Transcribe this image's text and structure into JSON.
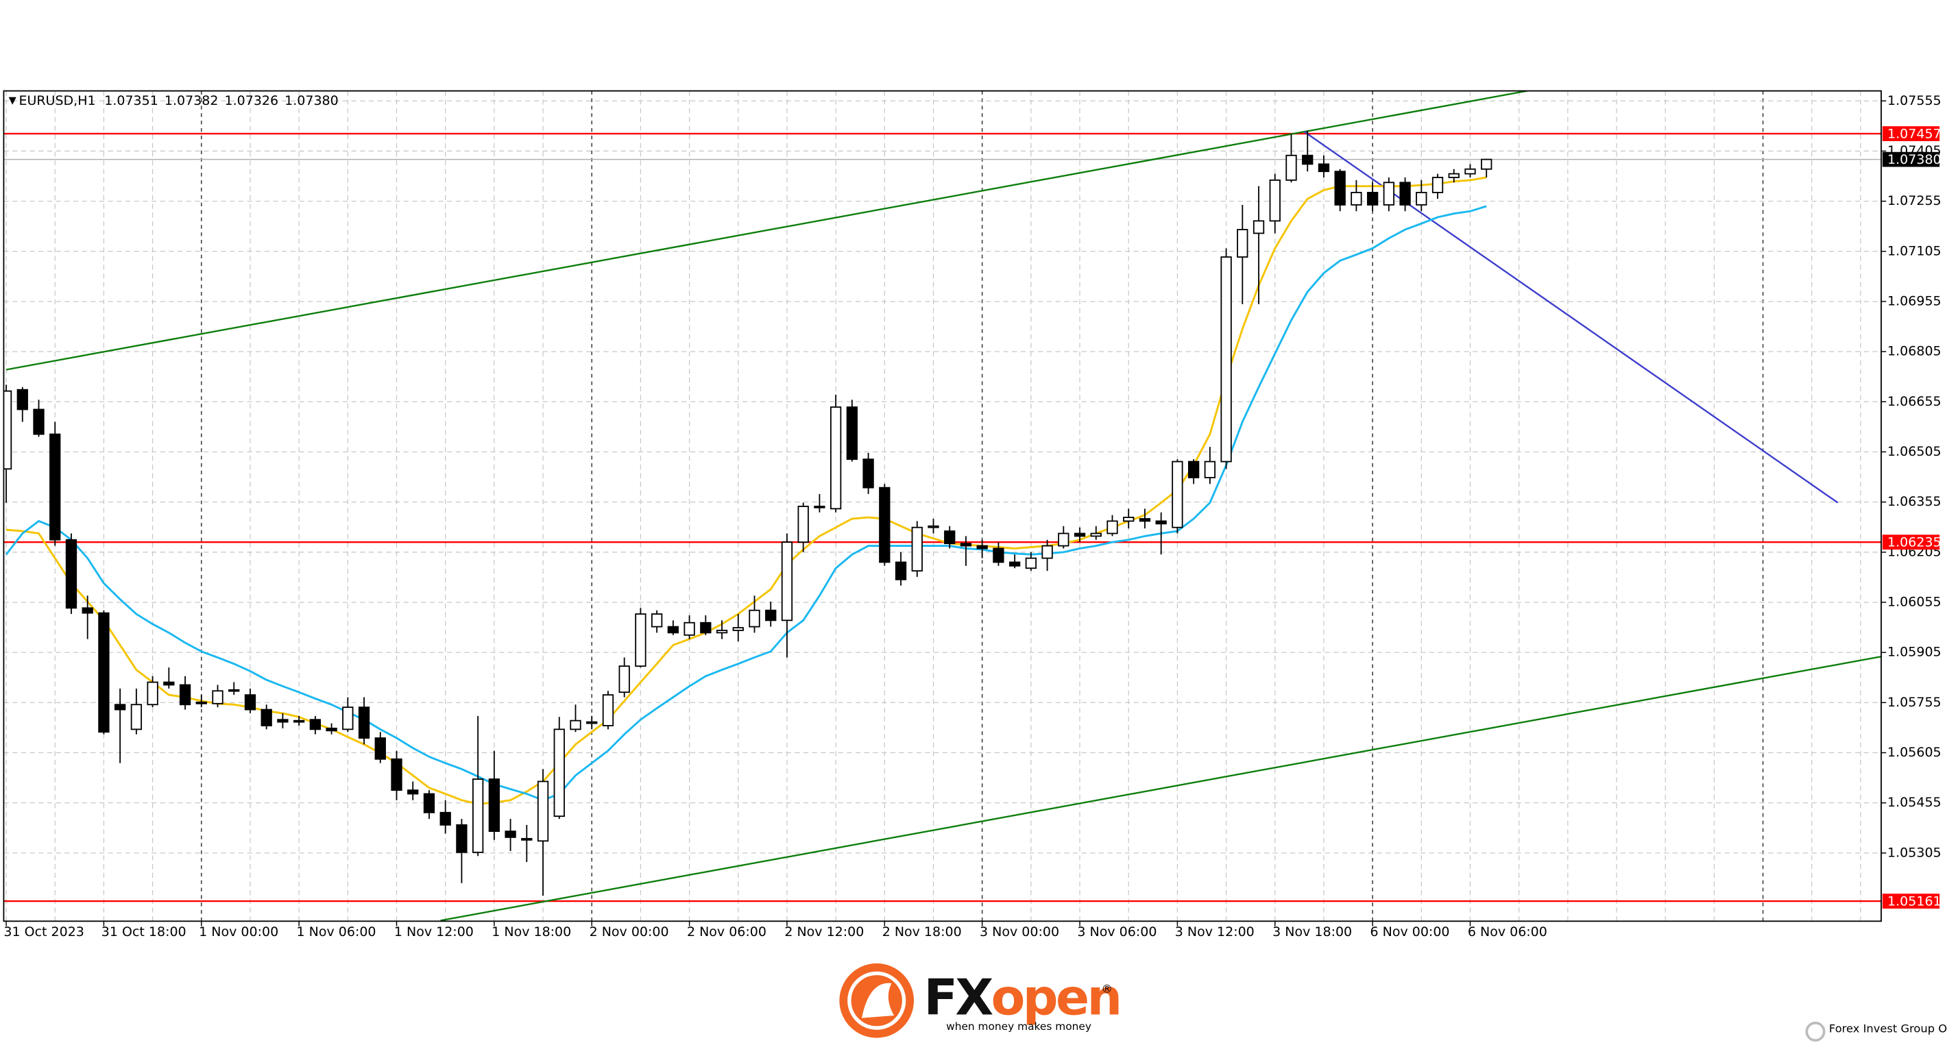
{
  "chart_data": {
    "type": "candlestick",
    "header": "EURUSD,H1",
    "header_values": [
      "1.07351",
      "1.07382",
      "1.07326",
      "1.07380"
    ],
    "categories": [
      "31 Oct 2023",
      null,
      null,
      null,
      null,
      null,
      "31 Oct 18:00",
      null,
      null,
      null,
      null,
      null,
      "1 Nov 00:00",
      null,
      null,
      null,
      null,
      null,
      "1 Nov 06:00",
      null,
      null,
      null,
      null,
      null,
      "1 Nov 12:00",
      null,
      null,
      null,
      null,
      null,
      "1 Nov 18:00",
      null,
      null,
      null,
      null,
      null,
      "2 Nov 00:00",
      null,
      null,
      null,
      null,
      null,
      "2 Nov 06:00",
      null,
      null,
      null,
      null,
      null,
      "2 Nov 12:00",
      null,
      null,
      null,
      null,
      null,
      "2 Nov 18:00",
      null,
      null,
      null,
      null,
      null,
      "3 Nov 00:00",
      null,
      null,
      null,
      null,
      null,
      "3 Nov 06:00",
      null,
      null,
      null,
      null,
      null,
      "3 Nov 12:00",
      null,
      null,
      null,
      null,
      null,
      "3 Nov 18:00",
      null,
      null,
      null,
      null,
      null,
      "6 Nov 00:00",
      null,
      null,
      null,
      null,
      null,
      "6 Nov 06:00",
      null
    ],
    "open": [
      1.06454,
      1.06691,
      1.06632,
      1.06558,
      1.06242,
      1.06038,
      1.06023,
      1.05749,
      1.05675,
      1.05749,
      1.05816,
      1.05808,
      1.05756,
      1.05752,
      1.0579,
      1.05778,
      1.05734,
      1.05704,
      1.05701,
      1.05704,
      1.05678,
      1.05675,
      1.05741,
      1.05649,
      1.05586,
      1.05493,
      1.05482,
      1.05426,
      1.05389,
      1.05307,
      1.05526,
      1.0537,
      1.05348,
      1.05341,
      1.05415,
      1.05675,
      1.05693,
      1.05686,
      1.05786,
      1.05864,
      1.05982,
      1.05982,
      1.05957,
      1.05994,
      1.05964,
      1.05971,
      1.05982,
      1.06031,
      1.06001,
      1.06235,
      1.06342,
      1.06335,
      1.06639,
      1.06483,
      1.06398,
      1.06175,
      1.06149,
      1.06279,
      1.06268,
      1.06231,
      1.06224,
      1.06216,
      1.06175,
      1.06157,
      1.06187,
      1.06224,
      1.06261,
      1.06253,
      1.06261,
      1.06298,
      1.06305,
      1.06298,
      1.06279,
      1.06476,
      1.06428,
      1.06476,
      1.07088,
      1.07159,
      1.07196,
      1.07318,
      1.07392,
      1.07366,
      1.07344,
      1.07244,
      1.07281,
      1.07244,
      1.07311,
      1.07244,
      1.07281,
      1.07326,
      1.07337,
      1.07351
    ],
    "high": [
      1.06706,
      1.06699,
      1.06661,
      1.06595,
      1.06261,
      1.06075,
      1.06031,
      1.05797,
      1.05797,
      1.05834,
      1.0586,
      1.05834,
      1.05778,
      1.05808,
      1.05816,
      1.05797,
      1.05749,
      1.05723,
      1.05715,
      1.05715,
      1.05693,
      1.05771,
      1.05771,
      1.05667,
      1.05611,
      1.05519,
      1.05493,
      1.05463,
      1.05407,
      1.05715,
      1.05611,
      1.05407,
      1.05389,
      1.05556,
      1.05712,
      1.05749,
      1.05715,
      1.0579,
      1.0589,
      1.06038,
      1.06031,
      1.06001,
      1.06016,
      1.06016,
      1.06001,
      1.0602,
      1.06075,
      1.06057,
      1.06261,
      1.06353,
      1.06379,
      1.06676,
      1.06661,
      1.06502,
      1.06409,
      1.06205,
      1.06298,
      1.06305,
      1.06283,
      1.06253,
      1.06242,
      1.06235,
      1.06198,
      1.06205,
      1.06242,
      1.06283,
      1.06279,
      1.06283,
      1.06316,
      1.06335,
      1.06335,
      1.06324,
      1.06483,
      1.06483,
      1.0652,
      1.07114,
      1.07244,
      1.073,
      1.07337,
      1.07455,
      1.07466,
      1.07392,
      1.07351,
      1.07318,
      1.07311,
      1.07326,
      1.07326,
      1.07318,
      1.07337,
      1.07351,
      1.07366,
      1.07382
    ],
    "low": [
      1.06353,
      1.06595,
      1.0655,
      1.06224,
      1.0602,
      1.05945,
      1.0566,
      1.05574,
      1.0566,
      1.05741,
      1.05797,
      1.05734,
      1.05741,
      1.05741,
      1.05778,
      1.05723,
      1.05675,
      1.05678,
      1.05686,
      1.0566,
      1.0566,
      1.05667,
      1.0563,
      1.05574,
      1.05463,
      1.05463,
      1.05407,
      1.05363,
      1.05215,
      1.05296,
      1.05344,
      1.05311,
      1.05278,
      1.05177,
      1.05407,
      1.05667,
      1.05675,
      1.05675,
      1.05771,
      1.0586,
      1.05964,
      1.05957,
      1.05945,
      1.05957,
      1.05945,
      1.05938,
      1.05964,
      1.05982,
      1.0589,
      1.06205,
      1.06324,
      1.06324,
      1.06476,
      1.06379,
      1.06164,
      1.06105,
      1.06131,
      1.06261,
      1.06216,
      1.06164,
      1.06187,
      1.06164,
      1.06157,
      1.06149,
      1.06149,
      1.06216,
      1.06235,
      1.06242,
      1.06253,
      1.06276,
      1.06276,
      1.06198,
      1.06261,
      1.06409,
      1.06409,
      1.06454,
      1.06947,
      1.06947,
      1.07159,
      1.07311,
      1.07344,
      1.07326,
      1.07225,
      1.07225,
      1.07225,
      1.07225,
      1.07225,
      1.07225,
      1.07262,
      1.07311,
      1.07326,
      1.07326
    ],
    "close": [
      1.06687,
      1.06632,
      1.06558,
      1.06242,
      1.06038,
      1.06023,
      1.05667,
      1.05734,
      1.05749,
      1.05816,
      1.05808,
      1.05749,
      1.05752,
      1.0579,
      1.05793,
      1.05734,
      1.05686,
      1.05697,
      1.05697,
      1.05675,
      1.05671,
      1.05741,
      1.05649,
      1.05586,
      1.05493,
      1.05482,
      1.05426,
      1.05389,
      1.05307,
      1.05526,
      1.0537,
      1.05352,
      1.05344,
      1.05519,
      1.05675,
      1.05701,
      1.05697,
      1.05778,
      1.05864,
      1.0602,
      1.0602,
      1.05964,
      1.05994,
      1.05964,
      1.05971,
      1.05979,
      1.06031,
      1.06001,
      1.06235,
      1.06342,
      1.06339,
      1.06639,
      1.06483,
      1.06398,
      1.06175,
      1.06123,
      1.06279,
      1.06283,
      1.06231,
      1.06224,
      1.06216,
      1.06175,
      1.06164,
      1.06187,
      1.06224,
      1.06261,
      1.06253,
      1.06261,
      1.06298,
      1.06309,
      1.06298,
      1.0629,
      1.06476,
      1.06428,
      1.06476,
      1.07088,
      1.0717,
      1.07196,
      1.07318,
      1.07392,
      1.07366,
      1.07344,
      1.07244,
      1.07281,
      1.07244,
      1.07311,
      1.07244,
      1.07281,
      1.07326,
      1.07337,
      1.07351,
      1.0738
    ],
    "up_color": "#ffffff",
    "down_color": "#000000",
    "indicators": [
      {
        "color": "#f5c400",
        "values": [
          1.06272,
          1.06268,
          1.06261,
          1.06187,
          1.06112,
          1.06057,
          1.06001,
          1.05927,
          1.05853,
          1.05816,
          1.05778,
          1.05771,
          1.0576,
          1.05752,
          1.05749,
          1.05741,
          1.0573,
          1.05723,
          1.05712,
          1.05693,
          1.05675,
          1.05652,
          1.0563,
          1.05604,
          1.05574,
          1.05537,
          1.055,
          1.05482,
          1.05463,
          1.05452,
          1.05456,
          1.05463,
          1.05489,
          1.05519,
          1.05574,
          1.0563,
          1.05667,
          1.05704,
          1.0576,
          1.05816,
          1.05871,
          1.05927,
          1.05945,
          1.05964,
          1.0599,
          1.0602,
          1.06057,
          1.06094,
          1.06168,
          1.06213,
          1.06253,
          1.06279,
          1.06305,
          1.06309,
          1.06305,
          1.06283,
          1.06261,
          1.06246,
          1.06231,
          1.06227,
          1.06224,
          1.0622,
          1.06216,
          1.0622,
          1.06224,
          1.06231,
          1.06242,
          1.06261,
          1.06279,
          1.06298,
          1.06316,
          1.06353,
          1.06391,
          1.06465,
          1.06558,
          1.06724,
          1.06873,
          1.07003,
          1.07114,
          1.07196,
          1.07262,
          1.07288,
          1.073,
          1.073,
          1.073,
          1.073,
          1.073,
          1.07303,
          1.07307,
          1.07314,
          1.07318,
          1.07326
        ]
      },
      {
        "color": "#1ab8f0",
        "values": [
          1.06198,
          1.06261,
          1.06298,
          1.06279,
          1.06242,
          1.06187,
          1.06112,
          1.06064,
          1.0602,
          1.0599,
          1.05964,
          1.05934,
          1.05908,
          1.0589,
          1.05871,
          1.05849,
          1.05823,
          1.05804,
          1.05786,
          1.05767,
          1.05749,
          1.05726,
          1.05704,
          1.05675,
          1.05649,
          1.05619,
          1.05593,
          1.05574,
          1.05556,
          1.05534,
          1.05511,
          1.05496,
          1.05482,
          1.05463,
          1.05482,
          1.05537,
          1.05574,
          1.05611,
          1.0566,
          1.05704,
          1.05738,
          1.05771,
          1.05804,
          1.05834,
          1.05853,
          1.05871,
          1.0589,
          1.05908,
          1.05964,
          1.06001,
          1.06075,
          1.06157,
          1.06198,
          1.06224,
          1.06224,
          1.06224,
          1.06224,
          1.06224,
          1.06224,
          1.06216,
          1.06213,
          1.06205,
          1.06201,
          1.06198,
          1.06201,
          1.06205,
          1.06216,
          1.06224,
          1.06235,
          1.06242,
          1.06253,
          1.06261,
          1.06268,
          1.06305,
          1.06353,
          1.06465,
          1.06595,
          1.06699,
          1.06799,
          1.06899,
          1.06984,
          1.0704,
          1.07077,
          1.07095,
          1.07114,
          1.07144,
          1.0717,
          1.07188,
          1.07207,
          1.07218,
          1.07225,
          1.0724
        ]
      }
    ],
    "trendlines": [
      {
        "color": "#0a7d0a",
        "x": [
          0,
          93.5
        ],
        "values": [
          1.06751,
          1.07585
        ]
      },
      {
        "color": "#0a7d0a",
        "x": [
          26.7,
          115.3
        ],
        "values": [
          1.05103,
          1.05893
        ]
      },
      {
        "color": "#3c3ccc",
        "x": [
          79.8,
          112.6
        ],
        "values": [
          1.07463,
          1.06353
        ]
      }
    ],
    "levels": [
      {
        "value": 1.07457,
        "color": "#ff0000"
      },
      {
        "value": 1.06235,
        "color": "#ff0000"
      },
      {
        "value": 1.05161,
        "color": "#ff0000"
      }
    ],
    "last_price": {
      "value": 1.0738,
      "label": "1.07380"
    },
    "ylim": [
      1.05101,
      1.07585
    ],
    "yticks": [
      1.07555,
      1.07405,
      1.07255,
      1.07105,
      1.06955,
      1.06805,
      1.06655,
      1.06505,
      1.06355,
      1.06205,
      1.06055,
      1.05905,
      1.05755,
      1.05605,
      1.05455,
      1.05305
    ],
    "grid": true
  },
  "logo": {
    "mark": "FX",
    "word": "open",
    "registered": "®",
    "tagline": "when money makes money"
  },
  "watermark": "Forex Invest Group OU"
}
